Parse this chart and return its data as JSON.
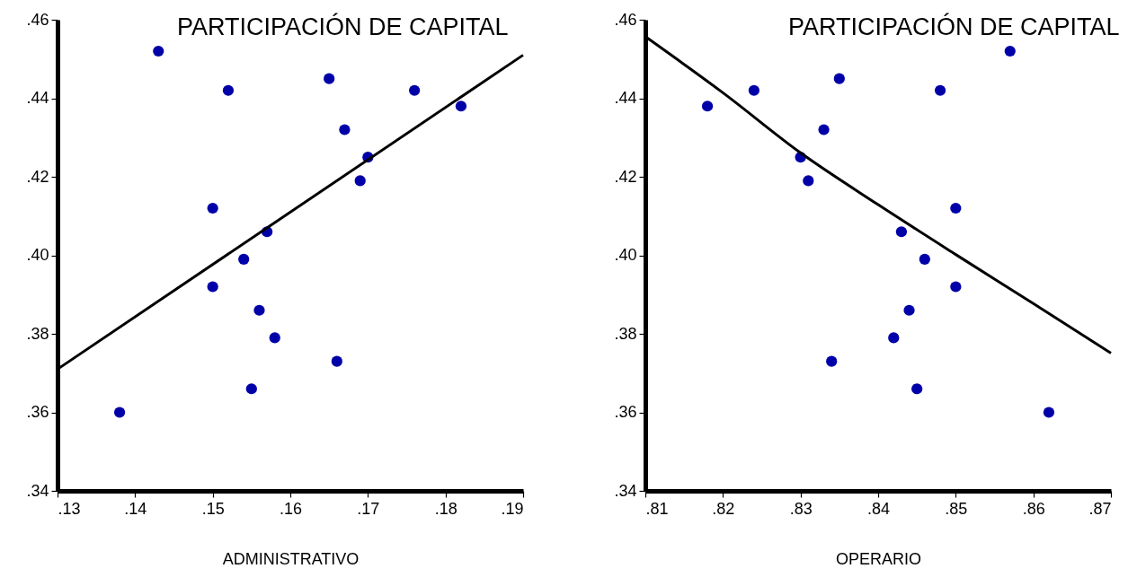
{
  "chart_data": [
    {
      "type": "scatter",
      "title": "PARTICIPACIÓN DE CAPITAL",
      "xlabel": "ADMINISTRATIVO",
      "grid": false,
      "xlim": [
        0.13,
        0.19
      ],
      "xticks": [
        {
          "value": 0.13,
          "label": ".13"
        },
        {
          "value": 0.14,
          "label": ".14"
        },
        {
          "value": 0.15,
          "label": ".15"
        },
        {
          "value": 0.16,
          "label": ".16"
        },
        {
          "value": 0.17,
          "label": ".17"
        },
        {
          "value": 0.18,
          "label": ".18"
        },
        {
          "value": 0.19,
          "label": ".19"
        }
      ],
      "ylim": [
        0.34,
        0.46
      ],
      "yticks": [
        {
          "value": 0.34,
          "label": ".34"
        },
        {
          "value": 0.36,
          "label": ".36"
        },
        {
          "value": 0.38,
          "label": ".38"
        },
        {
          "value": 0.4,
          "label": ".40"
        },
        {
          "value": 0.42,
          "label": ".42"
        },
        {
          "value": 0.44,
          "label": ".44"
        },
        {
          "value": 0.46,
          "label": ".46"
        }
      ],
      "series": [
        {
          "type": "scatter",
          "marker": "circle",
          "color": "#0000a8",
          "x": [
            0.138,
            0.143,
            0.152,
            0.15,
            0.15,
            0.154,
            0.156,
            0.157,
            0.158,
            0.155,
            0.165,
            0.167,
            0.166,
            0.169,
            0.17,
            0.176,
            0.182
          ],
          "values": [
            0.36,
            0.452,
            0.442,
            0.412,
            0.392,
            0.399,
            0.386,
            0.406,
            0.379,
            0.366,
            0.445,
            0.432,
            0.373,
            0.419,
            0.425,
            0.442,
            0.438
          ]
        },
        {
          "type": "line",
          "color": "#000000",
          "x": [
            0.13,
            0.19
          ],
          "values": [
            0.371,
            0.451
          ]
        }
      ]
    },
    {
      "type": "scatter",
      "title": "PARTICIPACIÓN DE CAPITAL",
      "xlabel": "OPERARIO",
      "grid": false,
      "xlim": [
        0.81,
        0.87
      ],
      "xticks": [
        {
          "value": 0.81,
          "label": ".81"
        },
        {
          "value": 0.82,
          "label": ".82"
        },
        {
          "value": 0.83,
          "label": ".83"
        },
        {
          "value": 0.84,
          "label": ".84"
        },
        {
          "value": 0.85,
          "label": ".85"
        },
        {
          "value": 0.86,
          "label": ".86"
        },
        {
          "value": 0.87,
          "label": ".87"
        }
      ],
      "ylim": [
        0.34,
        0.46
      ],
      "yticks": [
        {
          "value": 0.34,
          "label": ".34"
        },
        {
          "value": 0.36,
          "label": ".36"
        },
        {
          "value": 0.38,
          "label": ".38"
        },
        {
          "value": 0.4,
          "label": ".40"
        },
        {
          "value": 0.42,
          "label": ".42"
        },
        {
          "value": 0.44,
          "label": ".44"
        },
        {
          "value": 0.46,
          "label": ".46"
        }
      ],
      "series": [
        {
          "type": "scatter",
          "marker": "circle",
          "color": "#0000a8",
          "x": [
            0.818,
            0.824,
            0.835,
            0.833,
            0.83,
            0.831,
            0.848,
            0.857,
            0.85,
            0.843,
            0.846,
            0.85,
            0.844,
            0.842,
            0.834,
            0.845,
            0.862
          ],
          "values": [
            0.438,
            0.442,
            0.445,
            0.432,
            0.425,
            0.419,
            0.442,
            0.452,
            0.412,
            0.406,
            0.399,
            0.392,
            0.386,
            0.379,
            0.373,
            0.366,
            0.36
          ]
        },
        {
          "type": "line",
          "color": "#000000",
          "x": [
            0.81,
            0.82,
            0.83,
            0.84,
            0.85,
            0.86,
            0.87
          ],
          "values": [
            0.4557,
            0.4414,
            0.4261,
            0.4129,
            0.4002,
            0.3877,
            0.3751
          ]
        }
      ]
    }
  ]
}
